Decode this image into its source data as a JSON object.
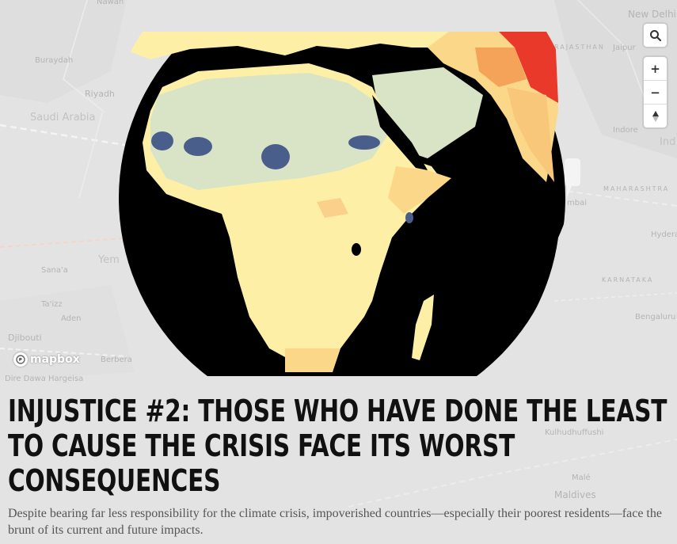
{
  "map": {
    "place_labels": [
      {
        "id": "new-delhi",
        "text": "New Delhi"
      },
      {
        "id": "jaipur",
        "text": "Jaipur"
      },
      {
        "id": "rajasthan",
        "text": "RAJASTHAN"
      },
      {
        "id": "indore",
        "text": "Indore"
      },
      {
        "id": "india",
        "text": "Ind"
      },
      {
        "id": "maharashtra",
        "text": "MAHARASHTRA"
      },
      {
        "id": "mumbai",
        "text": "mbai"
      },
      {
        "id": "hyderabad",
        "text": "Hydera"
      },
      {
        "id": "karnataka",
        "text": "KARNATAKA"
      },
      {
        "id": "bengaluru",
        "text": "Bengaluru"
      },
      {
        "id": "kulhudhuffushi",
        "text": "Kulhudhuffushi"
      },
      {
        "id": "male",
        "text": "Malé"
      },
      {
        "id": "maldives",
        "text": "Maldives"
      },
      {
        "id": "buraydah",
        "text": "Buraydah"
      },
      {
        "id": "riyadh",
        "text": "Riyadh"
      },
      {
        "id": "saudi-arabia",
        "text": "Saudi Arabia"
      },
      {
        "id": "yemen",
        "text": "Yem"
      },
      {
        "id": "sanaa",
        "text": "Sana'a"
      },
      {
        "id": "taizz",
        "text": "Ta'izz"
      },
      {
        "id": "aden",
        "text": "Aden"
      },
      {
        "id": "djibouti",
        "text": "Djibouti"
      },
      {
        "id": "berbera",
        "text": "Berbera"
      },
      {
        "id": "hargeisa",
        "text": "Dire Dawa  Hargeisa"
      },
      {
        "id": "nawah",
        "text": "Nawah"
      }
    ],
    "controls": {
      "search_symbol": "⌕",
      "zoom_in_symbol": "+",
      "zoom_out_symbol": "−",
      "compass_symbol": "▲"
    },
    "attribution_logo": "mapbox",
    "colors": {
      "ocean": "#000000",
      "land_low": "#fdf0a6",
      "land_mid": "#fbd78a",
      "land_high": "#f6a35a",
      "land_max": "#e8392a",
      "sahara": "#d9e4c7",
      "water_bodies": "#4a5e8c"
    }
  },
  "article": {
    "headline": "INJUSTICE #2: THOSE WHO HAVE DONE THE LEAST TO CAUSE THE CRISIS FACE ITS WORST CONSEQUENCES",
    "subtitle": "Despite bearing far less responsibility for the climate crisis, impoverished countries—especially their poorest residents—face the brunt of its current and future impacts."
  }
}
